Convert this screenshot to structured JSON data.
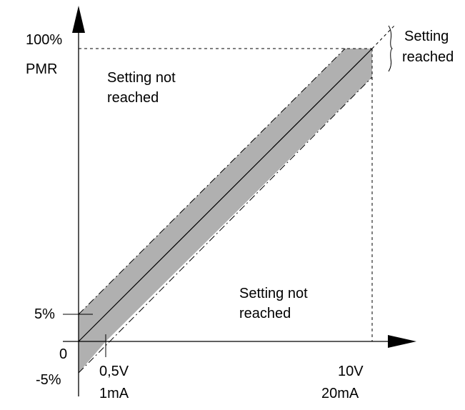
{
  "y_axis": {
    "top_label_line1": "100%",
    "top_label_line2": "PMR",
    "tick_5": "5%",
    "tick_0": "0",
    "tick_minus5": "-5%"
  },
  "x_axis": {
    "tick_start_line1": "0,5V",
    "tick_start_line2": "1mA",
    "tick_end_line1": "10V",
    "tick_end_line2": "20mA"
  },
  "regions": {
    "upper_left_line1": "Setting not",
    "upper_left_line2": "reached",
    "lower_right_line1": "Setting not",
    "lower_right_line2": "reached",
    "top_right_line1": "Setting",
    "top_right_line2": "reached"
  },
  "colors": {
    "band_fill": "#b0b0b0",
    "line": "#000000"
  }
}
